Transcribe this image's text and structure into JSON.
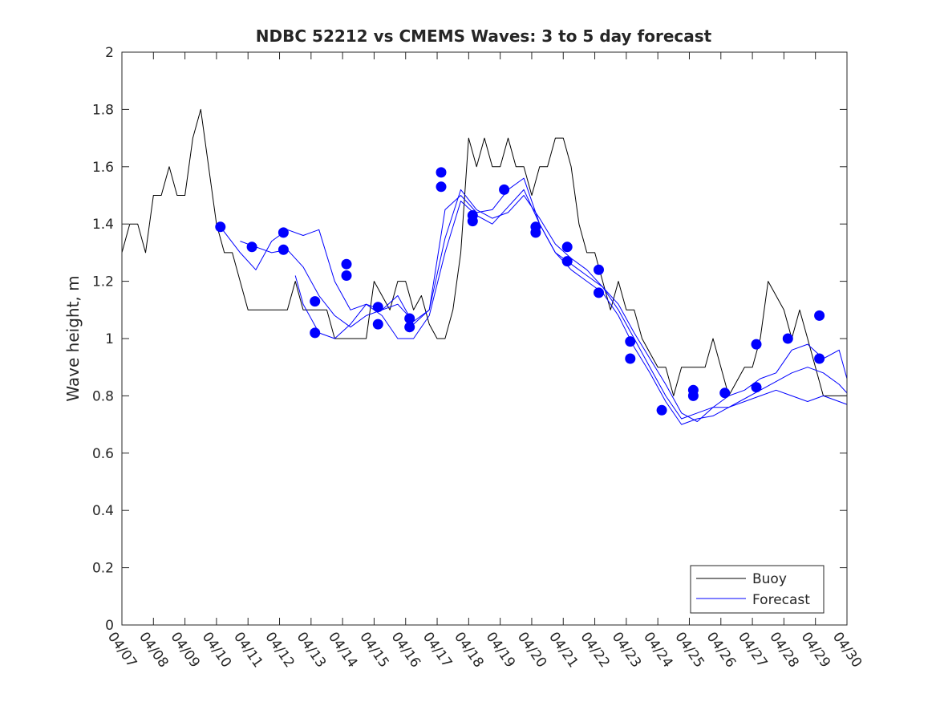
{
  "chart_data": {
    "type": "line",
    "title": "NDBC 52212 vs CMEMS Waves: 3 to 5 day forecast",
    "xlabel": "",
    "ylabel": "Wave height, m",
    "xlim": [
      "04/07",
      "04/30"
    ],
    "ylim": [
      0,
      2
    ],
    "x_ticks": [
      "04/07",
      "04/08",
      "04/09",
      "04/10",
      "04/11",
      "04/12",
      "04/13",
      "04/14",
      "04/15",
      "04/16",
      "04/17",
      "04/18",
      "04/19",
      "04/20",
      "04/21",
      "04/22",
      "04/23",
      "04/24",
      "04/25",
      "04/26",
      "04/27",
      "04/28",
      "04/29",
      "04/30"
    ],
    "y_ticks": [
      "0",
      "0.2",
      "0.4",
      "0.6",
      "0.8",
      "1",
      "1.2",
      "1.4",
      "1.6",
      "1.8",
      "2"
    ],
    "grid": false,
    "legend": {
      "placement": "bottom-right",
      "entries": [
        "Buoy",
        "Forecast"
      ]
    },
    "colors": {
      "buoy": "#000000",
      "forecast": "#0000ff"
    },
    "series": [
      {
        "name": "Buoy",
        "x": [
          "04/07 00:00",
          "04/07 06:00",
          "04/07 12:00",
          "04/07 18:00",
          "04/08 00:00",
          "04/08 06:00",
          "04/08 12:00",
          "04/08 18:00",
          "04/09 00:00",
          "04/09 06:00",
          "04/09 12:00",
          "04/09 18:00",
          "04/10 00:00",
          "04/10 06:00",
          "04/10 12:00",
          "04/10 18:00",
          "04/11 00:00",
          "04/11 06:00",
          "04/11 12:00",
          "04/11 18:00",
          "04/12 00:00",
          "04/12 06:00",
          "04/12 12:00",
          "04/12 18:00",
          "04/13 00:00",
          "04/13 06:00",
          "04/13 12:00",
          "04/13 18:00",
          "04/14 00:00",
          "04/14 06:00",
          "04/14 12:00",
          "04/14 18:00",
          "04/15 00:00",
          "04/15 06:00",
          "04/15 12:00",
          "04/15 18:00",
          "04/16 00:00",
          "04/16 06:00",
          "04/16 12:00",
          "04/16 18:00",
          "04/17 00:00",
          "04/17 06:00",
          "04/17 12:00",
          "04/17 18:00",
          "04/18 00:00",
          "04/18 06:00",
          "04/18 12:00",
          "04/18 18:00",
          "04/19 00:00",
          "04/19 06:00",
          "04/19 12:00",
          "04/19 18:00",
          "04/20 00:00",
          "04/20 06:00",
          "04/20 12:00",
          "04/20 18:00",
          "04/21 00:00",
          "04/21 06:00",
          "04/21 12:00",
          "04/21 18:00",
          "04/22 00:00",
          "04/22 06:00",
          "04/22 12:00",
          "04/22 18:00",
          "04/23 00:00",
          "04/23 06:00",
          "04/23 12:00",
          "04/23 18:00",
          "04/24 00:00",
          "04/24 06:00",
          "04/24 12:00",
          "04/24 18:00",
          "04/25 00:00",
          "04/25 06:00",
          "04/25 12:00",
          "04/25 18:00",
          "04/26 00:00",
          "04/26 06:00",
          "04/26 12:00",
          "04/26 18:00",
          "04/27 00:00",
          "04/27 06:00",
          "04/27 12:00",
          "04/27 18:00",
          "04/28 00:00",
          "04/28 06:00",
          "04/28 12:00",
          "04/28 18:00",
          "04/29 00:00",
          "04/29 06:00",
          "04/29 12:00",
          "04/29 18:00",
          "04/30 00:00"
        ],
        "values": [
          1.3,
          1.4,
          1.4,
          1.3,
          1.5,
          1.5,
          1.6,
          1.5,
          1.5,
          1.7,
          1.8,
          1.6,
          1.4,
          1.3,
          1.3,
          1.2,
          1.1,
          1.1,
          1.1,
          1.1,
          1.1,
          1.1,
          1.2,
          1.1,
          1.1,
          1.1,
          1.1,
          1.0,
          1.0,
          1.0,
          1.0,
          1.0,
          1.2,
          1.15,
          1.1,
          1.2,
          1.2,
          1.1,
          1.15,
          1.05,
          1.0,
          1.0,
          1.1,
          1.3,
          1.7,
          1.6,
          1.7,
          1.6,
          1.6,
          1.7,
          1.6,
          1.6,
          1.5,
          1.6,
          1.6,
          1.7,
          1.7,
          1.6,
          1.4,
          1.3,
          1.3,
          1.2,
          1.1,
          1.2,
          1.1,
          1.1,
          1.0,
          0.95,
          0.9,
          0.9,
          0.8,
          0.9,
          0.9,
          0.9,
          0.9,
          1.0,
          0.9,
          0.8,
          0.85,
          0.9,
          0.9,
          1.0,
          1.2,
          1.15,
          1.1,
          1.0,
          1.1,
          1.0,
          0.9,
          0.8,
          0.8,
          0.8,
          0.8
        ]
      },
      {
        "name": "Forecast",
        "x": [
          "04/10 03:00",
          "04/10 18:00",
          "04/11 06:00",
          "04/11 18:00",
          "04/12 06:00",
          "04/12 18:00",
          "04/13 06:00",
          "04/13 18:00",
          "04/14 06:00",
          "04/14 18:00",
          "04/15 06:00",
          "04/15 18:00",
          "04/16 06:00",
          "04/16 18:00",
          "04/17 06:00",
          "04/17 18:00",
          "04/18 06:00",
          "04/18 18:00",
          "04/19 06:00",
          "04/19 18:00",
          "04/20 06:00",
          "04/20 18:00",
          "04/21 06:00",
          "04/21 18:00",
          "04/22 06:00",
          "04/22 18:00",
          "04/23 06:00",
          "04/23 18:00",
          "04/24 06:00",
          "04/24 18:00",
          "04/25 06:00",
          "04/25 18:00",
          "04/26 06:00",
          "04/26 18:00",
          "04/27 06:00",
          "04/27 18:00",
          "04/28 06:00",
          "04/28 18:00",
          "04/29 06:00",
          "04/29 18:00",
          "04/30 00:00"
        ],
        "values": [
          1.39,
          1.3,
          1.24,
          1.34,
          1.38,
          1.36,
          1.38,
          1.2,
          1.1,
          1.12,
          1.1,
          1.15,
          1.05,
          1.1,
          1.45,
          1.5,
          1.44,
          1.45,
          1.52,
          1.56,
          1.4,
          1.3,
          1.26,
          1.22,
          1.18,
          1.1,
          1.0,
          0.9,
          0.8,
          0.72,
          0.74,
          0.76,
          0.8,
          0.82,
          0.86,
          0.88,
          0.96,
          0.98,
          0.93,
          0.96,
          0.86
        ]
      },
      {
        "name": "",
        "x": [
          "04/10 18:00",
          "04/11 06:00",
          "04/11 18:00",
          "04/12 06:00",
          "04/12 18:00",
          "04/13 06:00",
          "04/13 18:00",
          "04/14 06:00",
          "04/14 18:00",
          "04/15 06:00",
          "04/15 18:00",
          "04/16 06:00",
          "04/16 18:00",
          "04/17 06:00",
          "04/17 18:00",
          "04/18 06:00",
          "04/18 18:00",
          "04/19 06:00",
          "04/19 18:00",
          "04/20 06:00",
          "04/20 18:00",
          "04/21 06:00",
          "04/21 18:00",
          "04/22 06:00",
          "04/22 18:00",
          "04/23 06:00",
          "04/23 18:00",
          "04/24 06:00",
          "04/24 18:00",
          "04/25 06:00",
          "04/25 18:00",
          "04/26 06:00",
          "04/26 18:00",
          "04/27 06:00",
          "04/27 18:00",
          "04/28 06:00",
          "04/28 18:00",
          "04/29 06:00",
          "04/29 18:00",
          "04/30 00:00"
        ],
        "values": [
          1.34,
          1.32,
          1.3,
          1.31,
          1.25,
          1.15,
          1.08,
          1.04,
          1.08,
          1.1,
          1.12,
          1.06,
          1.1,
          1.35,
          1.52,
          1.45,
          1.42,
          1.44,
          1.5,
          1.42,
          1.33,
          1.28,
          1.24,
          1.18,
          1.12,
          1.02,
          0.93,
          0.84,
          0.74,
          0.71,
          0.76,
          0.76,
          0.79,
          0.82,
          0.85,
          0.88,
          0.9,
          0.88,
          0.84,
          0.81
        ]
      },
      {
        "name": "",
        "x": [
          "04/12 12:00",
          "04/12 18:00",
          "04/13 06:00",
          "04/13 18:00",
          "04/14 06:00",
          "04/14 18:00",
          "04/15 06:00",
          "04/15 18:00",
          "04/16 06:00",
          "04/16 18:00",
          "04/17 06:00",
          "04/17 18:00",
          "04/18 06:00",
          "04/18 18:00",
          "04/19 06:00",
          "04/19 18:00",
          "04/20 06:00",
          "04/20 18:00",
          "04/21 06:00",
          "04/21 18:00",
          "04/22 06:00",
          "04/22 18:00",
          "04/23 06:00",
          "04/23 18:00",
          "04/24 06:00",
          "04/24 18:00",
          "04/25 06:00",
          "04/25 18:00",
          "04/26 06:00",
          "04/26 18:00",
          "04/27 06:00",
          "04/27 18:00",
          "04/28 06:00",
          "04/28 18:00",
          "04/29 06:00",
          "04/29 18:00",
          "04/30 00:00"
        ],
        "values": [
          1.22,
          1.12,
          1.02,
          1.0,
          1.05,
          1.12,
          1.08,
          1.0,
          1.0,
          1.08,
          1.3,
          1.48,
          1.43,
          1.4,
          1.46,
          1.52,
          1.4,
          1.3,
          1.24,
          1.2,
          1.16,
          1.08,
          0.97,
          0.88,
          0.78,
          0.7,
          0.72,
          0.73,
          0.76,
          0.78,
          0.8,
          0.82,
          0.8,
          0.78,
          0.8,
          0.78,
          0.77
        ]
      }
    ],
    "markers": {
      "x": [
        "04/10 03:00",
        "04/11 03:00",
        "04/12 03:00",
        "04/12 03:00",
        "04/13 03:00",
        "04/13 03:00",
        "04/14 03:00",
        "04/14 03:00",
        "04/15 03:00",
        "04/15 03:00",
        "04/16 03:00",
        "04/16 03:00",
        "04/17 03:00",
        "04/17 03:00",
        "04/18 03:00",
        "04/18 03:00",
        "04/19 03:00",
        "04/20 03:00",
        "04/20 03:00",
        "04/21 03:00",
        "04/21 03:00",
        "04/22 03:00",
        "04/22 03:00",
        "04/23 03:00",
        "04/23 03:00",
        "04/24 03:00",
        "04/25 03:00",
        "04/25 03:00",
        "04/26 03:00",
        "04/27 03:00",
        "04/27 03:00",
        "04/28 03:00",
        "04/29 03:00",
        "04/29 03:00"
      ],
      "values": [
        1.39,
        1.32,
        1.37,
        1.31,
        1.13,
        1.02,
        1.26,
        1.22,
        1.11,
        1.05,
        1.07,
        1.04,
        1.58,
        1.53,
        1.43,
        1.41,
        1.52,
        1.39,
        1.37,
        1.32,
        1.27,
        1.24,
        1.16,
        0.99,
        0.93,
        0.75,
        0.82,
        0.8,
        0.81,
        0.98,
        0.83,
        1.0,
        1.08,
        0.93
      ]
    }
  }
}
